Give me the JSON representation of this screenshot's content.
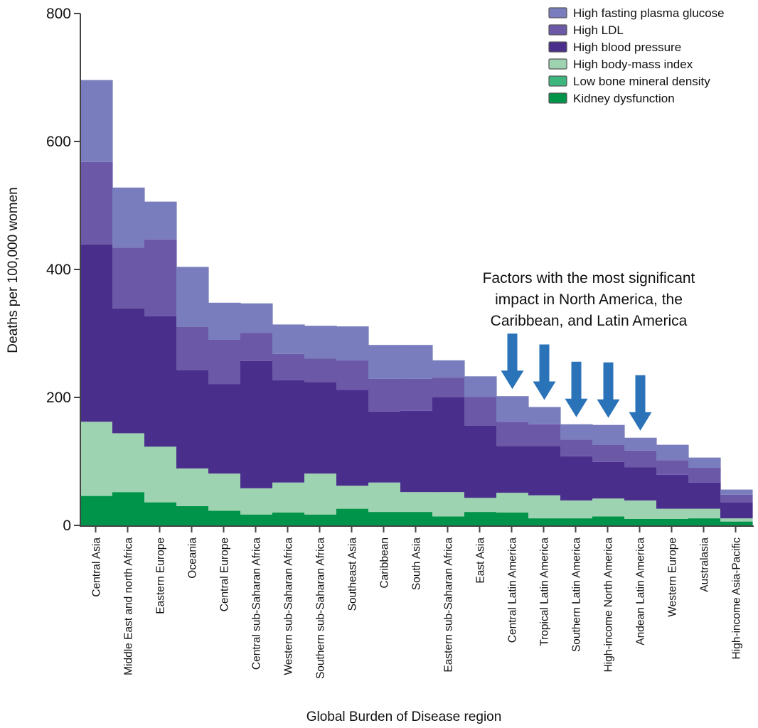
{
  "chart_data": {
    "type": "bar",
    "stacked": true,
    "style": "step-histogram (adjacent stacked bars, no gaps)",
    "title": "",
    "xlabel": "Global Burden of Disease region",
    "ylabel": "Deaths per 100,000 women",
    "ylim": [
      0,
      800
    ],
    "yticks": [
      0,
      200,
      400,
      600,
      800
    ],
    "grid": false,
    "legend_position": "top-right",
    "categories": [
      "Central Asia",
      "Middle East and north Africa",
      "Eastern Europe",
      "Oceania",
      "Central Europe",
      "Central sub-Saharan Africa",
      "Western sub-Saharan Africa",
      "Southern sub-Saharan Africa",
      "Southeast Asia",
      "Caribbean",
      "South Asia",
      "Eastern sub-Saharan Africa",
      "East Asia",
      "Central Latin America",
      "Tropical Latin America",
      "Southern Latin America",
      "High-income North America",
      "Andean Latin America",
      "Western Europe",
      "Australasia",
      "High-income Asia-Pacific"
    ],
    "series": [
      {
        "name": "Kidney dysfunction",
        "color": "#00934a",
        "values": [
          46,
          52,
          36,
          30,
          23,
          17,
          20,
          17,
          26,
          21,
          21,
          14,
          21,
          20,
          11,
          11,
          14,
          10,
          10,
          11,
          6
        ]
      },
      {
        "name": "Low bone mineral density",
        "color": "#3cb67d",
        "values": [
          0,
          0,
          0,
          0,
          0,
          0,
          0,
          0,
          0,
          0,
          0,
          0,
          0,
          0,
          0,
          0,
          0,
          0,
          0,
          0,
          0
        ]
      },
      {
        "name": "High body-mass index",
        "color": "#9dd3b0",
        "values": [
          116,
          92,
          87,
          59,
          58,
          41,
          47,
          64,
          36,
          46,
          31,
          38,
          22,
          31,
          36,
          28,
          28,
          29,
          16,
          15,
          5
        ]
      },
      {
        "name": "High blood pressure",
        "color": "#4a2e8c",
        "values": [
          277,
          195,
          204,
          154,
          140,
          199,
          160,
          143,
          150,
          111,
          127,
          148,
          113,
          73,
          77,
          69,
          57,
          52,
          53,
          41,
          25
        ]
      },
      {
        "name": "High LDL",
        "color": "#6b59a8",
        "values": [
          129,
          95,
          120,
          67,
          69,
          44,
          41,
          37,
          46,
          51,
          50,
          31,
          45,
          38,
          34,
          26,
          27,
          26,
          23,
          23,
          12
        ]
      },
      {
        "name": "High fasting plasma glucose",
        "color": "#7a7dbd",
        "values": [
          128,
          94,
          59,
          94,
          58,
          46,
          46,
          51,
          53,
          53,
          53,
          27,
          32,
          40,
          27,
          24,
          31,
          20,
          24,
          16,
          8
        ]
      }
    ],
    "legend_order": [
      "High fasting plasma glucose",
      "High LDL",
      "High blood pressure",
      "High body-mass index",
      "Low bone mineral density",
      "Kidney dysfunction"
    ],
    "annotation": {
      "lines": [
        "Factors with the most significant",
        "impact in North America, the",
        "Caribbean, and Latin America"
      ],
      "arrow_color": "#2b73b8",
      "arrow_targets": [
        "Central Latin America",
        "Tropical Latin America",
        "Southern Latin America",
        "High-income North America",
        "Andean Latin America"
      ]
    }
  }
}
